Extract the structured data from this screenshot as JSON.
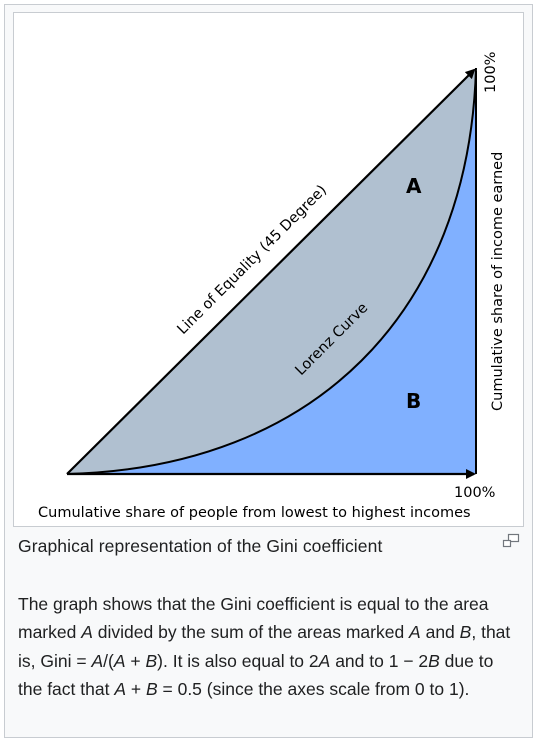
{
  "figure": {
    "line_of_equality_label": "Line of Equality (45 Degree)",
    "lorenz_curve_label": "Lorenz Curve",
    "area_a_label": "A",
    "area_b_label": "B",
    "x_end_label": "100%",
    "y_end_label": "100%",
    "x_axis_label": "Cumulative share of people from lowest to highest incomes",
    "y_axis_label": "Cumulative share of income earned",
    "colors": {
      "area_a": "#b0c0d0",
      "area_b": "#80b0ff",
      "stroke": "#000000"
    }
  },
  "caption": {
    "title": "Graphical representation of the Gini coefficient",
    "enlarge_icon": "magnify-icon",
    "body": {
      "t1": "The graph shows that the Gini coefficient is equal to the area marked ",
      "a1": "A",
      "t2": " divided by the sum of the areas marked ",
      "a2": "A",
      "t3": " and ",
      "b1": "B",
      "t4": ", that is, Gini = ",
      "a3": "A",
      "t5": "/(",
      "a4": "A",
      "t6": " + ",
      "b2": "B",
      "t7": "). It is also equal to 2",
      "a5": "A",
      "t8": " and to 1 − 2",
      "b3": "B",
      "t9": " due to the fact that ",
      "a6": "A",
      "t10": " + ",
      "b4": "B",
      "t11": " = 0.5 (since the axes scale from 0 to 1)."
    }
  }
}
